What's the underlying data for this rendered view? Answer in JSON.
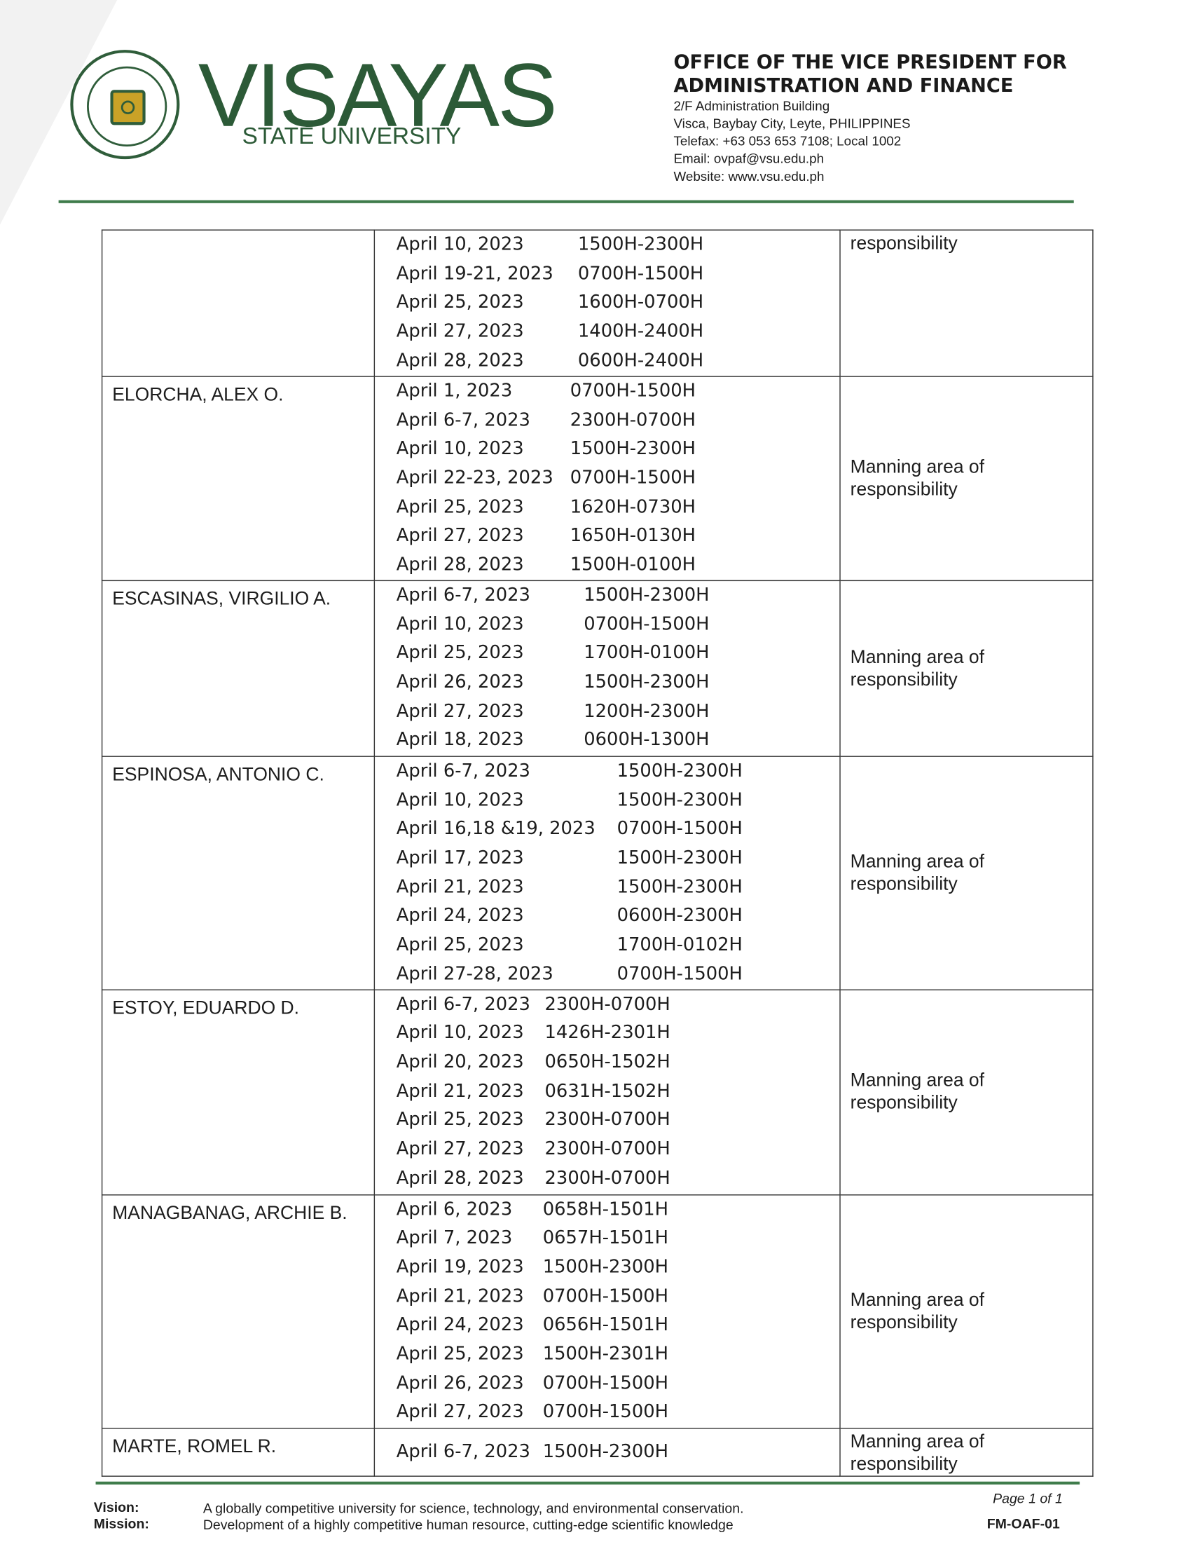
{
  "header": {
    "logo_text": "VISAYAS STATE UNIVERSITY",
    "brand": "VISAYAS",
    "brand_sub": "STATE UNIVERSITY",
    "office_line1": "OFFICE OF THE VICE PRESIDENT FOR",
    "office_line2": "ADMINISTRATION AND FINANCE",
    "address1": "2/F Administration Building",
    "address2": "Visca, Baybay City, Leyte, PHILIPPINES",
    "telefax": "Telefax: +63 053 653 7108; Local 1002",
    "email": "Email: ovpaf@vsu.edu.ph",
    "website": "Website: www.vsu.edu.ph",
    "brand_color": "#2c5a37"
  },
  "table": {
    "rows": [
      {
        "name": "",
        "remarks": "responsibility",
        "schedule": [
          {
            "date": "April 10, 2023",
            "time": "1500H-2300H"
          },
          {
            "date": "April 19-21, 2023",
            "time": "0700H-1500H"
          },
          {
            "date": "April 25, 2023",
            "time": "1600H-0700H"
          },
          {
            "date": "April 27, 2023",
            "time": "1400H-2400H"
          },
          {
            "date": "April 28, 2023",
            "time": "0600H-2400H"
          }
        ]
      },
      {
        "name": "ELORCHA, ALEX O.",
        "remarks": "Manning area of responsibility",
        "schedule": [
          {
            "date": "April 1, 2023",
            "time": "0700H-1500H"
          },
          {
            "date": "April 6-7, 2023",
            "time": "2300H-0700H"
          },
          {
            "date": "April 10, 2023",
            "time": "1500H-2300H"
          },
          {
            "date": "April 22-23, 2023",
            "time": "0700H-1500H"
          },
          {
            "date": "April 25, 2023",
            "time": "1620H-0730H"
          },
          {
            "date": "April 27, 2023",
            "time": "1650H-0130H"
          },
          {
            "date": "April 28, 2023",
            "time": "1500H-0100H"
          }
        ]
      },
      {
        "name": "ESCASINAS, VIRGILIO A.",
        "remarks": "Manning area of responsibility",
        "schedule": [
          {
            "date": "April 6-7, 2023",
            "time": "1500H-2300H"
          },
          {
            "date": "April 10, 2023",
            "time": "0700H-1500H"
          },
          {
            "date": "April 25, 2023",
            "time": "1700H-0100H"
          },
          {
            "date": "April 26, 2023",
            "time": "1500H-2300H"
          },
          {
            "date": "April 27, 2023",
            "time": "1200H-2300H"
          },
          {
            "date": "April 18, 2023",
            "time": "0600H-1300H"
          }
        ]
      },
      {
        "name": "ESPINOSA, ANTONIO C.",
        "remarks": "Manning area of responsibility",
        "schedule": [
          {
            "date": "April 6-7, 2023",
            "time": "1500H-2300H"
          },
          {
            "date": "April 10, 2023",
            "time": "1500H-2300H"
          },
          {
            "date": "April 16,18 &19, 2023",
            "time": "0700H-1500H"
          },
          {
            "date": "April 17, 2023",
            "time": "1500H-2300H"
          },
          {
            "date": "April 21, 2023",
            "time": "1500H-2300H"
          },
          {
            "date": "April 24, 2023",
            "time": "0600H-2300H"
          },
          {
            "date": "April 25, 2023",
            "time": "1700H-0102H"
          },
          {
            "date": "April 27-28, 2023",
            "time": "0700H-1500H"
          }
        ]
      },
      {
        "name": "ESTOY, EDUARDO D.",
        "remarks": "Manning area of responsibility",
        "schedule": [
          {
            "date": "April 6-7, 2023",
            "time": "2300H-0700H"
          },
          {
            "date": "April 10, 2023",
            "time": "1426H-2301H"
          },
          {
            "date": "April 20, 2023",
            "time": "0650H-1502H"
          },
          {
            "date": "April 21, 2023",
            "time": "0631H-1502H"
          },
          {
            "date": "April 25, 2023",
            "time": "2300H-0700H"
          },
          {
            "date": "April 27, 2023",
            "time": "2300H-0700H"
          },
          {
            "date": "April 28, 2023",
            "time": "2300H-0700H"
          }
        ]
      },
      {
        "name": "MANAGBANAG, ARCHIE B.",
        "remarks": "Manning area of responsibility",
        "schedule": [
          {
            "date": "April 6, 2023",
            "time": "0658H-1501H"
          },
          {
            "date": "April 7, 2023",
            "time": "0657H-1501H"
          },
          {
            "date": "April 19, 2023",
            "time": "1500H-2300H"
          },
          {
            "date": "April 21, 2023",
            "time": "0700H-1500H"
          },
          {
            "date": "April 24, 2023",
            "time": "0656H-1501H"
          },
          {
            "date": "April 25, 2023",
            "time": "1500H-2301H"
          },
          {
            "date": "April 26, 2023",
            "time": "0700H-1500H"
          },
          {
            "date": "April 27, 2023",
            "time": "0700H-1500H"
          }
        ]
      },
      {
        "name": "MARTE, ROMEL R.",
        "remarks": "Manning area of responsibility",
        "schedule": [
          {
            "date": "April 6-7, 2023",
            "time": "1500H-2300H"
          }
        ]
      }
    ]
  },
  "footer": {
    "vision_label": "Vision:",
    "vision_text": "A globally competitive university for science, technology, and environmental conservation.",
    "mission_label": "Mission:",
    "mission_text": "Development of a highly competitive human resource, cutting-edge scientific knowledge",
    "page": "Page 1 of 1",
    "form_code": "FM-OAF-01"
  }
}
